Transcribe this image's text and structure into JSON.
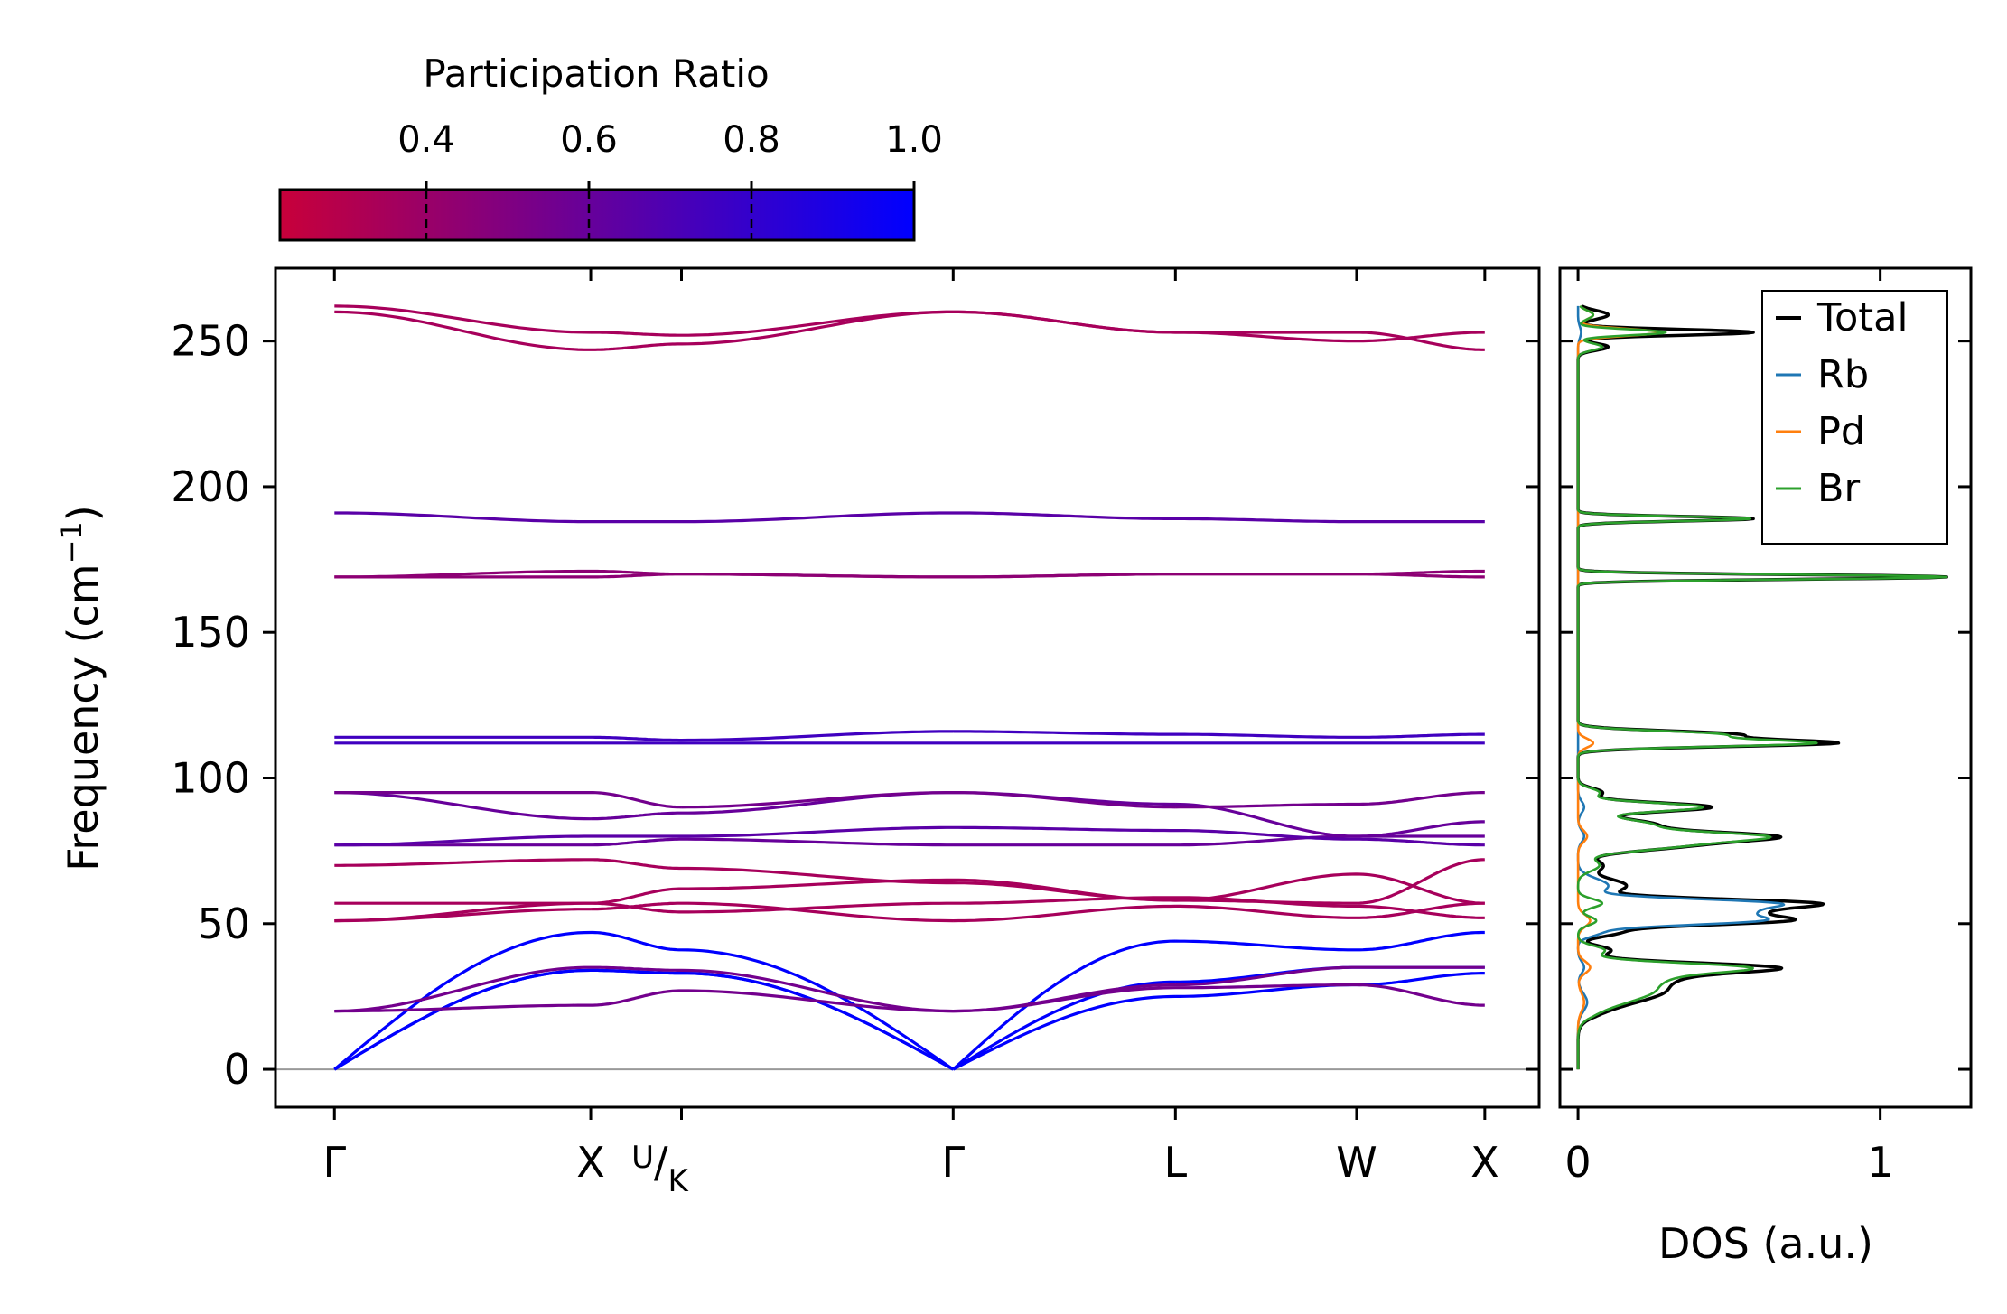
{
  "colorbar": {
    "label": "Participation Ratio",
    "ticks": [
      "0.4",
      "0.6",
      "0.8",
      "1.0"
    ],
    "tick_values": [
      0.4,
      0.6,
      0.8,
      1.0
    ],
    "range": [
      0.22,
      1.0
    ],
    "color_low": "#c8003a",
    "color_high": "#0000ff"
  },
  "chart_data": [
    {
      "type": "line",
      "name": "phonon-band-structure",
      "ylabel": "Frequency (cm⁻¹)",
      "ylim": [
        -13,
        275
      ],
      "yticks": [
        0,
        50,
        100,
        150,
        200,
        250
      ],
      "xlabel": "",
      "x_ticks": [
        {
          "label": "Γ",
          "x": 0.0
        },
        {
          "label": "X",
          "x": 1.0
        },
        {
          "label": "U/K",
          "x": 1.354
        },
        {
          "label": "Γ",
          "x": 2.414
        },
        {
          "label": "L",
          "x": 3.281
        },
        {
          "label": "W",
          "x": 3.988
        },
        {
          "label": "X",
          "x": 4.488
        }
      ],
      "xlim": [
        -0.23,
        4.7
      ],
      "zero_line": 0,
      "path_breaks": [
        1.0,
        1.354,
        2.414,
        3.281,
        3.988
      ],
      "series": [
        {
          "name": "acoustic-1",
          "pr": 1.0,
          "nodes": [
            0,
            47,
            41,
            0,
            44,
            41,
            47
          ]
        },
        {
          "name": "acoustic-2",
          "pr": 1.0,
          "nodes": [
            0,
            34,
            33,
            0,
            30,
            35,
            35
          ]
        },
        {
          "name": "acoustic-3",
          "pr": 1.0,
          "nodes": [
            0,
            34,
            33,
            0,
            25,
            29,
            33
          ]
        },
        {
          "name": "band-4",
          "pr": 0.55,
          "nodes": [
            20,
            35,
            34,
            20,
            29,
            35,
            35
          ]
        },
        {
          "name": "band-5",
          "pr": 0.55,
          "nodes": [
            20,
            22,
            27,
            20,
            28,
            29,
            22
          ]
        },
        {
          "name": "band-6",
          "pr": 0.35,
          "nodes": [
            51,
            55,
            57,
            51,
            56,
            52,
            57
          ]
        },
        {
          "name": "band-7",
          "pr": 0.35,
          "nodes": [
            51,
            57,
            62,
            65,
            58,
            67,
            57
          ]
        },
        {
          "name": "band-8",
          "pr": 0.35,
          "nodes": [
            57,
            57,
            54,
            57,
            59,
            56,
            52
          ]
        },
        {
          "name": "band-9",
          "pr": 0.35,
          "nodes": [
            70,
            72,
            69,
            64,
            58,
            57,
            72
          ]
        },
        {
          "name": "band-10",
          "pr": 0.6,
          "nodes": [
            77,
            77,
            79,
            77,
            77,
            80,
            80
          ]
        },
        {
          "name": "band-11",
          "pr": 0.65,
          "nodes": [
            77,
            80,
            80,
            83,
            82,
            79,
            77
          ]
        },
        {
          "name": "band-12",
          "pr": 0.6,
          "nodes": [
            95,
            86,
            88,
            95,
            91,
            80,
            85
          ]
        },
        {
          "name": "band-13",
          "pr": 0.55,
          "nodes": [
            95,
            95,
            90,
            95,
            90,
            91,
            95
          ]
        },
        {
          "name": "band-14",
          "pr": 0.75,
          "nodes": [
            112,
            112,
            112,
            112,
            112,
            112,
            112
          ]
        },
        {
          "name": "band-15",
          "pr": 0.75,
          "nodes": [
            114,
            114,
            113,
            116,
            115,
            114,
            115
          ]
        },
        {
          "name": "band-16",
          "pr": 0.45,
          "nodes": [
            169,
            171,
            170,
            169,
            170,
            170,
            171
          ]
        },
        {
          "name": "band-17",
          "pr": 0.45,
          "nodes": [
            169,
            169,
            170,
            169,
            170,
            170,
            169
          ]
        },
        {
          "name": "band-18",
          "pr": 0.65,
          "nodes": [
            191,
            188,
            188,
            191,
            189,
            188,
            188
          ]
        },
        {
          "name": "band-19",
          "pr": 0.35,
          "nodes": [
            262,
            253,
            252,
            260,
            253,
            253,
            247
          ]
        },
        {
          "name": "band-20",
          "pr": 0.35,
          "nodes": [
            260,
            247,
            249,
            260,
            253,
            250,
            253
          ]
        }
      ]
    },
    {
      "type": "line",
      "name": "phonon-dos",
      "xlabel": "DOS (a.u.)",
      "xlim": [
        -0.06,
        1.3
      ],
      "xticks": [
        0,
        1
      ],
      "ylim": [
        -13,
        275
      ],
      "legend_position": "top-right",
      "series": [
        {
          "name": "Total",
          "color": "#000000",
          "peaks": [
            [
              23,
              0.12,
              4
            ],
            [
              27,
              0.18,
              3
            ],
            [
              33,
              0.31,
              3
            ],
            [
              35,
              0.41,
              1.5
            ],
            [
              41,
              0.1,
              1.5
            ],
            [
              47,
              0.13,
              1.5
            ],
            [
              51,
              0.64,
              1.5
            ],
            [
              54,
              0.45,
              1.5
            ],
            [
              57,
              0.73,
              1.5
            ],
            [
              63,
              0.16,
              2.5
            ],
            [
              70,
              0.08,
              2
            ],
            [
              77,
              0.34,
              2
            ],
            [
              80,
              0.52,
              1.5
            ],
            [
              84,
              0.25,
              2
            ],
            [
              90,
              0.44,
              1.5
            ],
            [
              95,
              0.08,
              1.5
            ],
            [
              112,
              0.84,
              1.2
            ],
            [
              115,
              0.5,
              1.2
            ],
            [
              169,
              1.22,
              0.8
            ],
            [
              189,
              0.58,
              0.8
            ],
            [
              248,
              0.1,
              1.2
            ],
            [
              253,
              0.58,
              1
            ],
            [
              259,
              0.1,
              1.5
            ]
          ]
        },
        {
          "name": "Rb",
          "color": "#1f77b4",
          "peaks": [
            [
              23,
              0.03,
              3
            ],
            [
              35,
              0.02,
              2
            ],
            [
              47,
              0.07,
              1.5
            ],
            [
              51,
              0.55,
              1.5
            ],
            [
              54,
              0.44,
              1.5
            ],
            [
              57,
              0.6,
              1.5
            ],
            [
              63,
              0.1,
              2.5
            ],
            [
              80,
              0.02,
              2
            ],
            [
              90,
              0.02,
              2
            ],
            [
              253,
              0.01,
              2
            ]
          ]
        },
        {
          "name": "Pd",
          "color": "#ff7f0e",
          "peaks": [
            [
              23,
              0.02,
              3
            ],
            [
              35,
              0.04,
              2
            ],
            [
              51,
              0.04,
              2
            ],
            [
              80,
              0.03,
              2
            ],
            [
              112,
              0.05,
              1.5
            ],
            [
              253,
              0.27,
              1.2
            ],
            [
              259,
              0.05,
              1.5
            ]
          ]
        },
        {
          "name": "Br",
          "color": "#2ca02c",
          "peaks": [
            [
              23,
              0.1,
              4
            ],
            [
              27,
              0.16,
              3
            ],
            [
              33,
              0.28,
              3
            ],
            [
              35,
              0.34,
              1.5
            ],
            [
              41,
              0.08,
              1.5
            ],
            [
              51,
              0.06,
              1.5
            ],
            [
              57,
              0.08,
              1.5
            ],
            [
              70,
              0.07,
              2
            ],
            [
              77,
              0.33,
              2
            ],
            [
              80,
              0.49,
              1.5
            ],
            [
              84,
              0.24,
              2
            ],
            [
              90,
              0.41,
              1.5
            ],
            [
              95,
              0.07,
              1.5
            ],
            [
              112,
              0.77,
              1.2
            ],
            [
              115,
              0.45,
              1.2
            ],
            [
              169,
              1.22,
              0.8
            ],
            [
              189,
              0.57,
              0.8
            ],
            [
              248,
              0.08,
              1.2
            ],
            [
              253,
              0.29,
              1
            ],
            [
              259,
              0.05,
              1.5
            ]
          ]
        }
      ]
    }
  ]
}
